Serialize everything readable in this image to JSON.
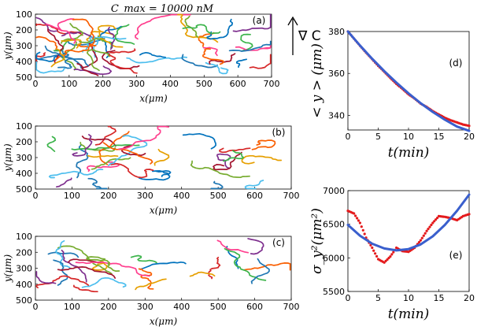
{
  "figure": {
    "title": "C_max = 10000 nM",
    "gradient_label": "∇ C"
  },
  "chart_data": [
    {
      "id": "a",
      "type": "scatter",
      "panel_label": "(a)",
      "description": "cell trajectories",
      "xlabel": "x(μm)",
      "ylabel": "y(μm)",
      "xlim": [
        0,
        700
      ],
      "ylim": [
        100,
        500
      ],
      "y_inverted": true,
      "xticks": [
        0,
        100,
        200,
        300,
        400,
        500,
        600,
        700
      ],
      "yticks": [
        100,
        200,
        300,
        400,
        500
      ],
      "n_tracks": 56,
      "seed": 11,
      "clusters": [
        {
          "x": [
            20,
            320
          ],
          "y": [
            200,
            460
          ],
          "n": 40
        },
        {
          "x": [
            480,
            650
          ],
          "y": [
            200,
            470
          ],
          "n": 16
        }
      ]
    },
    {
      "id": "b",
      "type": "scatter",
      "panel_label": "(b)",
      "description": "cell trajectories",
      "xlabel": "x(μm)",
      "ylabel": "y(μm)",
      "xlim": [
        0,
        700
      ],
      "ylim": [
        100,
        500
      ],
      "y_inverted": true,
      "xticks": [
        0,
        100,
        200,
        300,
        400,
        500,
        600,
        700
      ],
      "yticks": [
        100,
        200,
        300,
        400,
        500
      ],
      "n_tracks": 32,
      "seed": 29,
      "clusters": [
        {
          "x": [
            40,
            340
          ],
          "y": [
            200,
            450
          ],
          "n": 22
        },
        {
          "x": [
            470,
            630
          ],
          "y": [
            200,
            470
          ],
          "n": 10
        }
      ]
    },
    {
      "id": "c",
      "type": "scatter",
      "panel_label": "(c)",
      "description": "cell trajectories",
      "xlabel": "x(μm)",
      "ylabel": "y(μm)",
      "xlim": [
        0,
        700
      ],
      "ylim": [
        100,
        500
      ],
      "y_inverted": true,
      "xticks": [
        0,
        100,
        200,
        300,
        400,
        500,
        600,
        700
      ],
      "yticks": [
        100,
        200,
        300,
        400,
        500
      ],
      "n_tracks": 26,
      "seed": 53,
      "clusters": [
        {
          "x": [
            40,
            340
          ],
          "y": [
            210,
            450
          ],
          "n": 18
        },
        {
          "x": [
            480,
            640
          ],
          "y": [
            200,
            400
          ],
          "n": 8
        }
      ]
    },
    {
      "id": "d",
      "type": "line",
      "panel_label": "(d)",
      "xlabel": "t(min)",
      "ylabel": "< y > (μm)",
      "xlim": [
        0,
        20
      ],
      "ylim": [
        333,
        380
      ],
      "xticks": [
        0,
        5,
        10,
        15,
        20
      ],
      "yticks": [
        340,
        360,
        380
      ],
      "series": [
        {
          "name": "measured",
          "style": "points",
          "x": [
            0,
            1,
            2,
            3,
            4,
            5,
            6,
            7,
            8,
            9,
            10,
            11,
            12,
            13,
            14,
            15,
            16,
            17,
            18,
            19,
            20
          ],
          "values": [
            380,
            376.6,
            373.2,
            369.9,
            366.8,
            363.6,
            360.8,
            357.8,
            355.0,
            352.6,
            350.0,
            348.0,
            345.6,
            344.0,
            342.0,
            340.4,
            338.8,
            337.6,
            336.6,
            335.6,
            335.0
          ]
        },
        {
          "name": "fit",
          "style": "line",
          "x": [
            0,
            2,
            4,
            6,
            8,
            10,
            12,
            14,
            16,
            18,
            20
          ],
          "values": [
            380,
            373.3,
            367.0,
            361.1,
            355.6,
            350.5,
            345.8,
            341.6,
            337.9,
            334.6,
            332.6
          ]
        }
      ]
    },
    {
      "id": "e",
      "type": "line",
      "panel_label": "(e)",
      "xlabel": "t(min)",
      "ylabel": "σ_y²(μm²)",
      "xlim": [
        0,
        20
      ],
      "ylim": [
        5500,
        7000
      ],
      "xticks": [
        0,
        5,
        10,
        15,
        20
      ],
      "yticks": [
        5500,
        6000,
        6500,
        7000
      ],
      "series": [
        {
          "name": "measured",
          "style": "points",
          "x": [
            0,
            1,
            2,
            3,
            4,
            5,
            6,
            7,
            8,
            9,
            10,
            11,
            12,
            13,
            14,
            15,
            16,
            17,
            18,
            19,
            20
          ],
          "values": [
            6700,
            6660,
            6520,
            6300,
            6150,
            5980,
            5930,
            6020,
            6150,
            6100,
            6090,
            6150,
            6260,
            6400,
            6520,
            6620,
            6610,
            6590,
            6560,
            6620,
            6650
          ]
        },
        {
          "name": "fit",
          "style": "line",
          "x": [
            0,
            2,
            4,
            6,
            8,
            10,
            12,
            14,
            16,
            18,
            20
          ],
          "values": [
            6490,
            6330,
            6210,
            6140,
            6110,
            6130,
            6200,
            6320,
            6490,
            6700,
            6940
          ]
        }
      ]
    }
  ]
}
